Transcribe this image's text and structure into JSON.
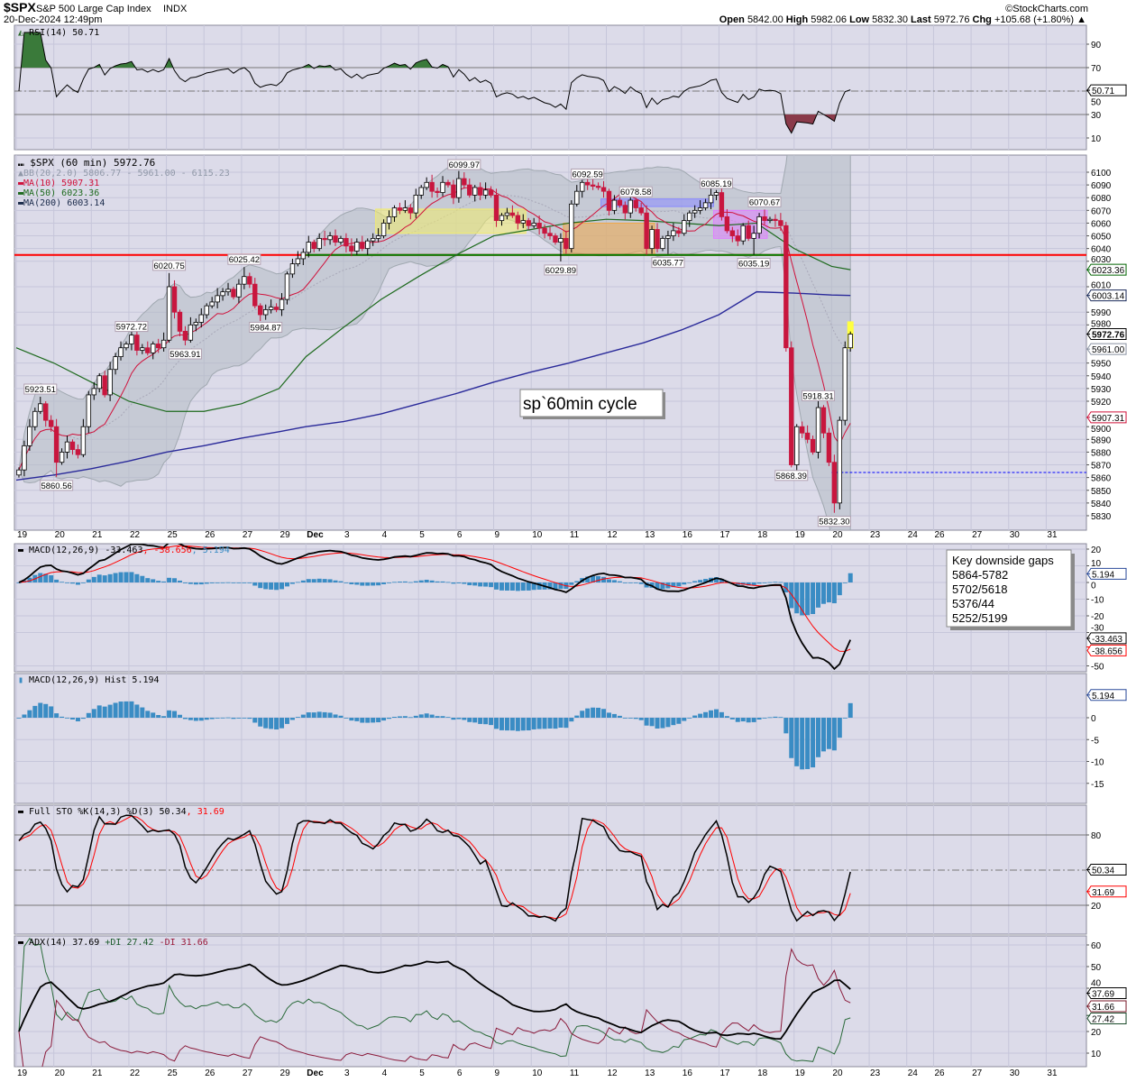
{
  "header": {
    "symbol": "$SPX",
    "name": "S&P 500 Large Cap Index",
    "exchange": "INDX",
    "timestamp": "20-Dec-2024 12:49pm",
    "brand": "©StockCharts.com",
    "open_label": "Open",
    "open": "5842.00",
    "high_label": "High",
    "high": "5982.06",
    "low_label": "Low",
    "low": "5832.30",
    "last_label": "Last",
    "last": "5972.76",
    "chg_label": "Chg",
    "chg": "+105.68 (+1.80%)",
    "chg_arrow": "▲"
  },
  "panels": {
    "rsi": {
      "legend": "RSI(14) 50.71",
      "tag": "50.71",
      "ticks": [
        90,
        70,
        50,
        30,
        10
      ],
      "overbought": 70,
      "oversold": 30
    },
    "price": {
      "legend": "$SPX (60 min) 5972.76",
      "bb_legend": "BB(20,2.0) 5806.77 - 5961.00 - 6115.23",
      "ma10_legend": "MA(10) 5907.31",
      "ma50_legend": "MA(50) 6023.36",
      "ma200_legend": "MA(200) 6003.14",
      "tags": [
        {
          "text": "6023.36",
          "value": 6023.36,
          "color": "#006400"
        },
        {
          "text": "6003.14",
          "value": 6003.14,
          "color": "#1a2a5a"
        },
        {
          "text": "5972.76",
          "value": 5972.76,
          "color": "#000000",
          "bold": true
        },
        {
          "text": "5961.00",
          "value": 5961.0,
          "color": "#8890a0"
        },
        {
          "text": "5907.31",
          "value": 5907.31,
          "color": "#d0103a"
        }
      ],
      "ticks": [
        6100,
        6090,
        6080,
        6070,
        6060,
        6050,
        6040,
        6030,
        6010,
        5990,
        5980,
        5950,
        5940,
        5930,
        5920,
        5900,
        5890,
        5880,
        5870,
        5860,
        5850,
        5840,
        5830
      ]
    },
    "macd": {
      "legend_main": "MACD(12,26,9) -33.463",
      "legend_signal": ", -38.656",
      "legend_hist": ", 5.194",
      "tags": [
        {
          "text": "5.194",
          "value": 5.194,
          "color": "#2a4a9a"
        },
        {
          "text": "-33.463",
          "value": -33.463,
          "color": "#000000"
        },
        {
          "text": "-38.656",
          "value": -38.656,
          "color": "#ff0000"
        }
      ],
      "ticks": [
        20,
        10,
        0,
        -10,
        -20,
        -30,
        -50
      ]
    },
    "hist": {
      "legend": "MACD(12,26,9) Hist 5.194",
      "tag": "5.194",
      "ticks": [
        0,
        -5,
        -10,
        -15
      ]
    },
    "sto": {
      "legend_main": "Full STO %K(14,3) %D(3) 50.34",
      "legend_d": ", 31.69",
      "tags": [
        {
          "text": "50.34",
          "value": 50.34,
          "color": "#000000"
        },
        {
          "text": "31.69",
          "value": 31.69,
          "color": "#ff0000"
        }
      ],
      "ticks": [
        80,
        20
      ]
    },
    "adx": {
      "legend_adx": "ADX(14) 37.69",
      "legend_pdi": "+DI 27.42",
      "legend_mdi": "-DI 31.66",
      "tags": [
        {
          "text": "37.69",
          "value": 37.69,
          "color": "#000000"
        },
        {
          "text": "31.66",
          "value": 31.66,
          "color": "#7a1a2a"
        },
        {
          "text": "27.42",
          "value": 27.42,
          "color": "#1a4a2a"
        }
      ],
      "ticks": [
        60,
        50,
        40,
        20,
        10
      ]
    }
  },
  "textboxes": {
    "cycle": "sp`60min cycle",
    "gaps_title": "Key downside gaps",
    "gaps": [
      "5864-5782",
      "5702/5618",
      "5376/44",
      "5252/5199"
    ]
  },
  "colors": {
    "panel_bg": "#dcdbe9",
    "grid": "#c6c6da",
    "down_candle": "#c8163e",
    "ma10": "#d0103a",
    "ma50": "#1e6a1e",
    "ma200": "#2a2a9a",
    "bb_fill": "#b4bcc4",
    "macd_hist": "#3a8cc4",
    "signal": "#ff0000",
    "pdi": "#2a6a3a",
    "mdi": "#8a1a3a"
  },
  "chart_data": {
    "type": "candlestick",
    "interval": "60 min",
    "first_open": 5862,
    "days": [
      {
        "date": "Nov 19",
        "label": "19",
        "closes": [
          5866,
          5885,
          5900,
          5912,
          5918,
          5905,
          5900
        ]
      },
      {
        "date": "Nov 20",
        "label": "20",
        "closes": [
          5872,
          5880,
          5888,
          5882,
          5878,
          5900,
          5925
        ]
      },
      {
        "date": "Nov 21",
        "label": "21",
        "closes": [
          5930,
          5940,
          5925,
          5945,
          5955,
          5962,
          5965
        ]
      },
      {
        "date": "Nov 22",
        "label": "22",
        "closes": [
          5972,
          5960,
          5962,
          5958,
          5965,
          5962,
          5968
        ]
      },
      {
        "date": "Nov 25",
        "label": "25",
        "closes": [
          6010,
          5990,
          5975,
          5968,
          5980,
          5982,
          5988
        ]
      },
      {
        "date": "Nov 26",
        "label": "26",
        "closes": [
          5995,
          5998,
          6003,
          6006,
          6008,
          6002,
          6012
        ]
      },
      {
        "date": "Nov 27",
        "label": "27",
        "closes": [
          6018,
          6012,
          5995,
          5988,
          5992,
          5994,
          5992
        ]
      },
      {
        "date": "Nov 29",
        "label": "29",
        "half_day": true,
        "closes": [
          6000,
          6020,
          6028,
          6032,
          6037
        ]
      },
      {
        "date": "Dec 2",
        "label": "Dec",
        "closes": [
          6045,
          6040,
          6048,
          6047,
          6050,
          6045,
          6048
        ]
      },
      {
        "date": "Dec 3",
        "label": "3",
        "closes": [
          6042,
          6038,
          6045,
          6040,
          6046,
          6048,
          6050
        ]
      },
      {
        "date": "Dec 4",
        "label": "4",
        "closes": [
          6060,
          6065,
          6072,
          6070,
          6072,
          6068,
          6082
        ]
      },
      {
        "date": "Dec 5",
        "label": "5",
        "closes": [
          6088,
          6092,
          6085,
          6084,
          6092,
          6090,
          6080
        ]
      },
      {
        "date": "Dec 6",
        "label": "6",
        "closes": [
          6095,
          6090,
          6082,
          6088,
          6082,
          6086,
          6082
        ]
      },
      {
        "date": "Dec 9",
        "label": "9",
        "closes": [
          6062,
          6066,
          6068,
          6066,
          6060,
          6062,
          6058
        ]
      },
      {
        "date": "Dec 10",
        "label": "10",
        "closes": [
          6060,
          6056,
          6052,
          6050,
          6045,
          6048,
          6040
        ]
      },
      {
        "date": "Dec 11",
        "label": "11",
        "closes": [
          6075,
          6085,
          6092,
          6090,
          6089,
          6088,
          6085
        ]
      },
      {
        "date": "Dec 12",
        "label": "12",
        "closes": [
          6070,
          6078,
          6074,
          6068,
          6078,
          6072,
          6068
        ]
      },
      {
        "date": "Dec 13",
        "label": "13",
        "closes": [
          6040,
          6055,
          6040,
          6048,
          6050,
          6054,
          6052
        ]
      },
      {
        "date": "Dec 16",
        "label": "16",
        "closes": [
          6062,
          6068,
          6070,
          6072,
          6076,
          6082,
          6084
        ]
      },
      {
        "date": "Dec 17",
        "label": "17",
        "closes": [
          6065,
          6054,
          6050,
          6046,
          6058,
          6048,
          6052
        ]
      },
      {
        "date": "Dec 18",
        "label": "18",
        "closes": [
          6065,
          6062,
          6063,
          6062,
          6058,
          5962,
          5870
        ]
      },
      {
        "date": "Dec 19",
        "label": "19",
        "closes": [
          5900,
          5895,
          5890,
          5880,
          5915,
          5895,
          5872
        ]
      },
      {
        "date": "Dec 20",
        "label": "20",
        "closes": [
          5840,
          5905,
          5962,
          5972.76
        ]
      },
      {
        "date": "Dec 23",
        "label": "23",
        "closes": []
      },
      {
        "date": "Dec 24",
        "label": "24",
        "half_day": true,
        "closes": []
      },
      {
        "date": "Dec 26",
        "label": "26",
        "closes": []
      },
      {
        "date": "Dec 27",
        "label": "27",
        "closes": []
      },
      {
        "date": "Dec 30",
        "label": "30",
        "closes": []
      },
      {
        "date": "Dec 31",
        "label": "31",
        "closes": []
      }
    ],
    "ma50_daily": [
      5962,
      5950,
      5935,
      5920,
      5912,
      5912,
      5918,
      5930,
      5955,
      5978,
      6000,
      6018,
      6035,
      6050,
      6055,
      6060,
      6063,
      6062,
      6060,
      6058,
      6060,
      6040,
      6026,
      6023.36
    ],
    "ma200_daily": [
      5858,
      5862,
      5867,
      5873,
      5880,
      5885,
      5891,
      5896,
      5900,
      5904,
      5910,
      5918,
      5926,
      5935,
      5943,
      5950,
      5958,
      5966,
      5976,
      5988,
      6006,
      6005,
      6003.5,
      6003.14
    ],
    "annotations": [
      {
        "text": "5923.51",
        "value": 5923.51,
        "day": 0,
        "bar": 4,
        "pos": "above"
      },
      {
        "text": "5860.56",
        "value": 5860.56,
        "day": 1,
        "bar": 0,
        "pos": "below"
      },
      {
        "text": "5972.72",
        "value": 5972.72,
        "day": 3,
        "bar": 0,
        "pos": "above"
      },
      {
        "text": "6020.75",
        "value": 6020.75,
        "day": 4,
        "bar": 0,
        "pos": "above"
      },
      {
        "text": "5963.91",
        "value": 5963.91,
        "day": 4,
        "bar": 3,
        "pos": "below"
      },
      {
        "text": "6025.42",
        "value": 6025.42,
        "day": 6,
        "bar": 0,
        "pos": "above"
      },
      {
        "text": "5984.87",
        "value": 5984.87,
        "day": 6,
        "bar": 4,
        "pos": "below"
      },
      {
        "text": "6099.97",
        "value": 6099.97,
        "day": 12,
        "bar": 1,
        "pos": "above"
      },
      {
        "text": "6029.89",
        "value": 6029.89,
        "day": 14,
        "bar": 5,
        "pos": "below"
      },
      {
        "text": "6092.59",
        "value": 6092.59,
        "day": 15,
        "bar": 3,
        "pos": "above"
      },
      {
        "text": "6078.58",
        "value": 6078.58,
        "day": 16,
        "bar": 5,
        "pos": "above"
      },
      {
        "text": "6035.77",
        "value": 6035.77,
        "day": 17,
        "bar": 4,
        "pos": "below"
      },
      {
        "text": "6085.19",
        "value": 6085.19,
        "day": 18,
        "bar": 6,
        "pos": "above"
      },
      {
        "text": "6035.19",
        "value": 6035.19,
        "day": 19,
        "bar": 6,
        "pos": "below"
      },
      {
        "text": "6070.67",
        "value": 6070.67,
        "day": 20,
        "bar": 1,
        "pos": "above"
      },
      {
        "text": "5868.39",
        "value": 5868.39,
        "day": 20,
        "bar": 6,
        "pos": "below"
      },
      {
        "text": "5918.31",
        "value": 5918.31,
        "day": 21,
        "bar": 4,
        "pos": "above"
      },
      {
        "text": "5832.30",
        "value": 5832.3,
        "day": 22,
        "bar": 0,
        "pos": "below"
      }
    ],
    "zones": [
      {
        "from_day": 9,
        "from_bar": 6,
        "to_day": 13,
        "to_bar": 5,
        "top": 6071,
        "bottom": 6052,
        "color": "#f2ec6e"
      },
      {
        "from_day": 14,
        "from_bar": 6,
        "to_day": 17,
        "to_bar": 1,
        "top": 6060,
        "bottom": 6035,
        "color": "#f0a848"
      },
      {
        "from_day": 15,
        "from_bar": 6,
        "to_day": 18,
        "to_bar": 5,
        "top": 6079,
        "bottom": 6073,
        "color": "#8a8aff"
      },
      {
        "from_day": 18,
        "from_bar": 6,
        "to_day": 20,
        "to_bar": 1,
        "top": 6070,
        "bottom": 6048,
        "color": "#e080ff"
      }
    ],
    "levels": [
      {
        "value": 6035,
        "color": "#ff0000",
        "style": "solid"
      },
      {
        "value": 6035,
        "color": "#008000",
        "style": "solid",
        "from_day": 8,
        "to_day": 20,
        "to_bar": 5
      },
      {
        "value": 5864,
        "color": "#0000ff",
        "style": "dashed",
        "from_day": 22
      }
    ]
  }
}
